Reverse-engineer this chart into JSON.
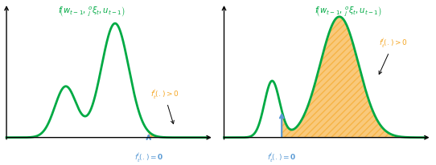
{
  "fig_width": 5.42,
  "fig_height": 2.06,
  "dpi": 100,
  "green_color": "#00aa44",
  "orange_color": "#f5a623",
  "orange_fill": "#f5a623",
  "blue_color": "#5b9bd5",
  "black_color": "#111111"
}
